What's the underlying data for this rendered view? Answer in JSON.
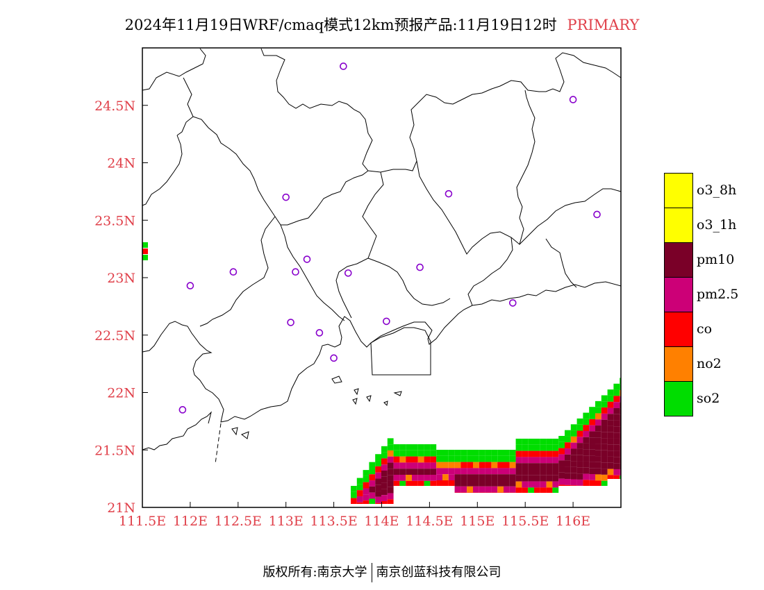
{
  "title": {
    "main": "2024年11月19日WRF/cmaq模式12km预报产品:11月19日12时",
    "tag": "PRIMARY"
  },
  "colors": {
    "so2": "#00dd00",
    "no2": "#ff8000",
    "co": "#ff0000",
    "pm2_5": "#cc0077",
    "pm10": "#7a0028",
    "o3": "#ffff00",
    "stations": "#8800cc",
    "axis_labels": "#e0404a"
  },
  "map": {
    "lon_range": [
      111.5,
      116.5
    ],
    "lat_range": [
      21.0,
      25.0
    ],
    "x_ticks": [
      "111.5E",
      "112E",
      "112.5E",
      "113E",
      "113.5E",
      "114E",
      "114.5E",
      "115E",
      "115.5E",
      "116E"
    ],
    "y_ticks": [
      "21N",
      "21.5N",
      "22N",
      "22.5N",
      "23N",
      "23.5N",
      "24N",
      "24.5N"
    ],
    "stations": [
      {
        "lon": 113.6,
        "lat": 24.84
      },
      {
        "lon": 116.0,
        "lat": 24.55
      },
      {
        "lon": 113.0,
        "lat": 23.7
      },
      {
        "lon": 114.7,
        "lat": 23.73
      },
      {
        "lon": 116.25,
        "lat": 23.55
      },
      {
        "lon": 113.22,
        "lat": 23.16
      },
      {
        "lon": 112.45,
        "lat": 23.05
      },
      {
        "lon": 113.1,
        "lat": 23.05
      },
      {
        "lon": 113.65,
        "lat": 23.04
      },
      {
        "lon": 114.4,
        "lat": 23.09
      },
      {
        "lon": 112.0,
        "lat": 22.93
      },
      {
        "lon": 115.37,
        "lat": 22.78
      },
      {
        "lon": 113.05,
        "lat": 22.61
      },
      {
        "lon": 114.05,
        "lat": 22.62
      },
      {
        "lon": 113.35,
        "lat": 22.52
      },
      {
        "lon": 113.5,
        "lat": 22.3
      },
      {
        "lon": 111.92,
        "lat": 21.85
      }
    ]
  },
  "legend": [
    {
      "label": "o3_8h",
      "color": "#ffff00"
    },
    {
      "label": "o3_1h",
      "color": "#ffff00"
    },
    {
      "label": "pm10",
      "color": "#7a0028"
    },
    {
      "label": "pm2.5",
      "color": "#cc0077"
    },
    {
      "label": "co",
      "color": "#ff0000"
    },
    {
      "label": "no2",
      "color": "#ff8000"
    },
    {
      "label": "so2",
      "color": "#00dd00"
    }
  ],
  "footer": {
    "left": "版权所有:南京大学",
    "right": "南京创蓝科技有限公司"
  }
}
